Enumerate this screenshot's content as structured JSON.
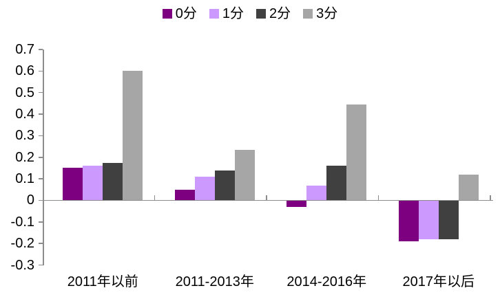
{
  "chart_data": {
    "type": "bar",
    "title": "",
    "categories": [
      "2011年以前",
      "2011-2013年",
      "2014-2016年",
      "2017年以后"
    ],
    "series": [
      {
        "name": "0分",
        "color": "#7D0080",
        "values": [
          0.15,
          0.05,
          -0.03,
          -0.19
        ]
      },
      {
        "name": "1分",
        "color": "#CC99FF",
        "values": [
          0.16,
          0.11,
          0.07,
          -0.18
        ]
      },
      {
        "name": "2分",
        "color": "#404040",
        "values": [
          0.175,
          0.14,
          0.16,
          -0.18
        ]
      },
      {
        "name": "3分",
        "color": "#A6A6A6",
        "values": [
          0.6,
          0.235,
          0.445,
          0.12
        ]
      }
    ],
    "xlabel": "",
    "ylabel": "",
    "ylim": [
      -0.3,
      0.7
    ],
    "ytick_step": 0.1,
    "ytick_labels": [
      "0.7",
      "0.6",
      "0.5",
      "0.4",
      "0.3",
      "0.2",
      "0.1",
      "0",
      "-0.1",
      "-0.2",
      "-0.3"
    ],
    "legend_position": "top",
    "grid": false,
    "axis_color": "#8c8c8c",
    "text_color": "#000000"
  }
}
